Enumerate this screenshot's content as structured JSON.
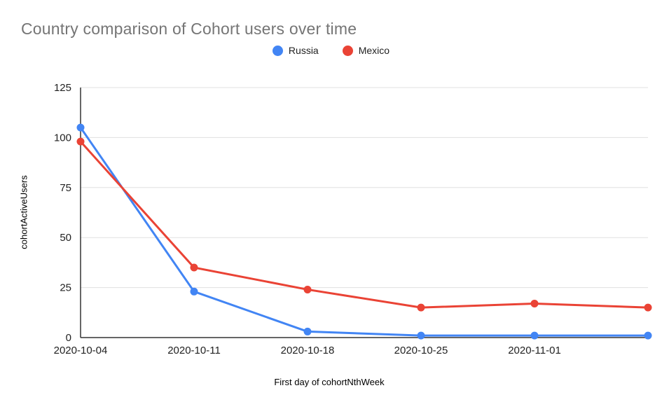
{
  "chart_data": {
    "type": "line",
    "title": "Country comparison of Cohort users over time",
    "xlabel": "First day of cohortNthWeek",
    "ylabel": "cohortActiveUsers",
    "categories": [
      "2020-10-04",
      "2020-10-11",
      "2020-10-18",
      "2020-10-25",
      "2020-11-01",
      ""
    ],
    "yticks": [
      0,
      25,
      50,
      75,
      100,
      125
    ],
    "ylim": [
      0,
      125
    ],
    "grid": true,
    "legend_position": "top",
    "series": [
      {
        "name": "Russia",
        "color": "#4285F4",
        "values": [
          105,
          23,
          3,
          1,
          1,
          1
        ]
      },
      {
        "name": "Mexico",
        "color": "#EA4335",
        "values": [
          98,
          35,
          24,
          15,
          17,
          15
        ]
      }
    ],
    "colors": {
      "title": "#757575",
      "axis": "#333333",
      "grid": "#e0e0e0",
      "tick_text": "#222222",
      "background": "#ffffff"
    }
  }
}
